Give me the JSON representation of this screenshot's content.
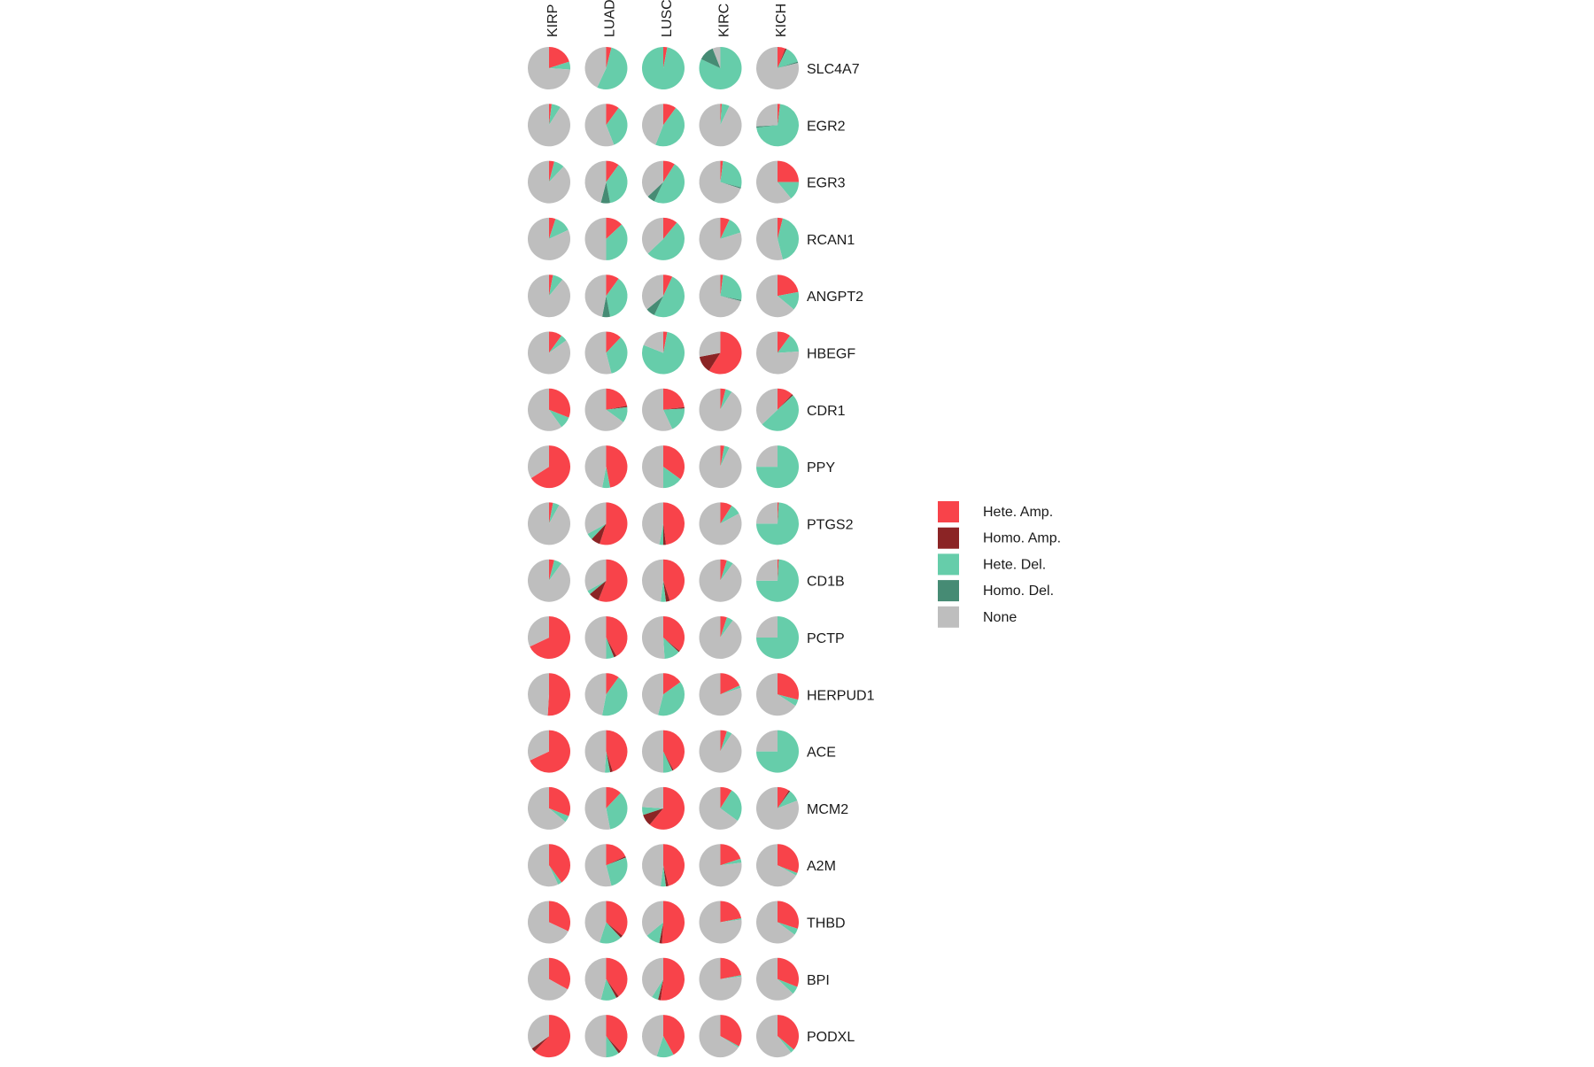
{
  "chart_data": {
    "type": "pie",
    "title": "",
    "columns": [
      "KIRP",
      "LUAD",
      "LUSC",
      "KIRC",
      "KICH"
    ],
    "rows": [
      "SLC4A7",
      "EGR2",
      "EGR3",
      "RCAN1",
      "ANGPT2",
      "HBEGF",
      "CDR1",
      "PPY",
      "PTGS2",
      "CD1B",
      "PCTP",
      "HERPUD1",
      "ACE",
      "MCM2",
      "A2M",
      "THBD",
      "BPI",
      "PODXL"
    ],
    "categories": [
      "Hete. Amp.",
      "Homo. Amp.",
      "Hete. Del.",
      "Homo. Del.",
      "None"
    ],
    "colors": {
      "Hete. Amp.": "#f8434a",
      "Homo. Amp.": "#8b2425",
      "Hete. Del.": "#66cdaa",
      "Homo. Del.": "#468b74",
      "None": "#bebebe"
    },
    "legend_position": "right",
    "values": [
      [
        [
          0.2,
          0,
          0.06,
          0,
          0.74
        ],
        [
          0.04,
          0,
          0.53,
          0,
          0.43
        ],
        [
          0.03,
          0,
          0.97,
          0,
          0
        ],
        [
          0,
          0,
          0.82,
          0.12,
          0.06
        ],
        [
          0.06,
          0.01,
          0.13,
          0.01,
          0.79
        ]
      ],
      [
        [
          0.02,
          0,
          0.07,
          0,
          0.91
        ],
        [
          0.1,
          0,
          0.34,
          0,
          0.56
        ],
        [
          0.1,
          0,
          0.46,
          0,
          0.44
        ],
        [
          0.01,
          0,
          0.06,
          0,
          0.93
        ],
        [
          0.02,
          0,
          0.71,
          0.01,
          0.26
        ]
      ],
      [
        [
          0.04,
          0,
          0.08,
          0,
          0.88
        ],
        [
          0.1,
          0,
          0.37,
          0.07,
          0.46
        ],
        [
          0.09,
          0,
          0.48,
          0.06,
          0.37
        ],
        [
          0.02,
          0,
          0.27,
          0.01,
          0.7
        ],
        [
          0.25,
          0,
          0.14,
          0,
          0.61
        ]
      ],
      [
        [
          0.05,
          0,
          0.13,
          0,
          0.82
        ],
        [
          0.13,
          0,
          0.37,
          0,
          0.5
        ],
        [
          0.11,
          0,
          0.52,
          0,
          0.37
        ],
        [
          0.07,
          0,
          0.13,
          0,
          0.8
        ],
        [
          0.04,
          0,
          0.42,
          0,
          0.54
        ]
      ],
      [
        [
          0.03,
          0,
          0.08,
          0,
          0.89
        ],
        [
          0.1,
          0,
          0.37,
          0.06,
          0.47
        ],
        [
          0.07,
          0,
          0.5,
          0.07,
          0.36
        ],
        [
          0.02,
          0,
          0.26,
          0.01,
          0.71
        ],
        [
          0.22,
          0,
          0.14,
          0,
          0.64
        ]
      ],
      [
        [
          0.1,
          0,
          0.05,
          0,
          0.85
        ],
        [
          0.12,
          0,
          0.34,
          0,
          0.54
        ],
        [
          0.03,
          0,
          0.78,
          0,
          0.19
        ],
        [
          0.59,
          0.13,
          0,
          0,
          0.28
        ],
        [
          0.1,
          0,
          0.14,
          0,
          0.76
        ]
      ],
      [
        [
          0.31,
          0,
          0.09,
          0,
          0.6
        ],
        [
          0.22,
          0.01,
          0.12,
          0,
          0.65
        ],
        [
          0.23,
          0.01,
          0.19,
          0,
          0.57
        ],
        [
          0.04,
          0,
          0.05,
          0,
          0.91
        ],
        [
          0.12,
          0.01,
          0.5,
          0,
          0.37
        ]
      ],
      [
        [
          0.66,
          0,
          0,
          0,
          0.34
        ],
        [
          0.47,
          0,
          0.06,
          0,
          0.47
        ],
        [
          0.35,
          0,
          0.15,
          0,
          0.5
        ],
        [
          0.03,
          0,
          0.04,
          0,
          0.93
        ],
        [
          0,
          0,
          0.75,
          0,
          0.25
        ]
      ],
      [
        [
          0.03,
          0,
          0.05,
          0,
          0.92
        ],
        [
          0.55,
          0.07,
          0.05,
          0,
          0.33
        ],
        [
          0.48,
          0.02,
          0.03,
          0,
          0.47
        ],
        [
          0.09,
          0,
          0.08,
          0,
          0.83
        ],
        [
          0.01,
          0,
          0.74,
          0,
          0.25
        ]
      ],
      [
        [
          0.04,
          0,
          0.06,
          0,
          0.9
        ],
        [
          0.56,
          0.08,
          0.03,
          0,
          0.33
        ],
        [
          0.45,
          0.03,
          0.04,
          0,
          0.48
        ],
        [
          0.05,
          0,
          0.05,
          0,
          0.9
        ],
        [
          0.01,
          0,
          0.74,
          0,
          0.25
        ]
      ],
      [
        [
          0.68,
          0,
          0,
          0,
          0.32
        ],
        [
          0.42,
          0.02,
          0.06,
          0,
          0.5
        ],
        [
          0.36,
          0.01,
          0.12,
          0,
          0.51
        ],
        [
          0.05,
          0,
          0.05,
          0,
          0.9
        ],
        [
          0,
          0,
          0.75,
          0,
          0.25
        ]
      ],
      [
        [
          0.51,
          0,
          0,
          0,
          0.49
        ],
        [
          0.1,
          0,
          0.43,
          0,
          0.47
        ],
        [
          0.15,
          0,
          0.39,
          0,
          0.46
        ],
        [
          0.18,
          0,
          0.02,
          0,
          0.8
        ],
        [
          0.29,
          0,
          0.05,
          0,
          0.66
        ]
      ],
      [
        [
          0.68,
          0,
          0,
          0,
          0.32
        ],
        [
          0.45,
          0.02,
          0.04,
          0,
          0.49
        ],
        [
          0.42,
          0.01,
          0.07,
          0,
          0.5
        ],
        [
          0.05,
          0,
          0.04,
          0,
          0.91
        ],
        [
          0,
          0,
          0.75,
          0,
          0.25
        ]
      ],
      [
        [
          0.31,
          0,
          0.05,
          0,
          0.64
        ],
        [
          0.12,
          0,
          0.35,
          0,
          0.53
        ],
        [
          0.61,
          0.09,
          0.06,
          0,
          0.24
        ],
        [
          0.09,
          0,
          0.26,
          0,
          0.65
        ],
        [
          0.09,
          0.01,
          0.09,
          0,
          0.81
        ]
      ],
      [
        [
          0.4,
          0,
          0.03,
          0,
          0.57
        ],
        [
          0.18,
          0.01,
          0.27,
          0,
          0.54
        ],
        [
          0.46,
          0.02,
          0.04,
          0,
          0.48
        ],
        [
          0.2,
          0,
          0.03,
          0,
          0.77
        ],
        [
          0.31,
          0,
          0.02,
          0,
          0.67
        ]
      ],
      [
        [
          0.32,
          0,
          0,
          0,
          0.68
        ],
        [
          0.36,
          0.02,
          0.17,
          0,
          0.45
        ],
        [
          0.51,
          0.02,
          0.11,
          0,
          0.36
        ],
        [
          0.22,
          0,
          0.01,
          0,
          0.77
        ],
        [
          0.3,
          0,
          0.05,
          0,
          0.65
        ]
      ],
      [
        [
          0.33,
          0,
          0,
          0,
          0.67
        ],
        [
          0.4,
          0.02,
          0.12,
          0,
          0.46
        ],
        [
          0.52,
          0.02,
          0.05,
          0,
          0.41
        ],
        [
          0.22,
          0,
          0.01,
          0,
          0.77
        ],
        [
          0.31,
          0,
          0.06,
          0,
          0.63
        ]
      ],
      [
        [
          0.62,
          0.03,
          0,
          0,
          0.35
        ],
        [
          0.38,
          0.02,
          0.1,
          0,
          0.5
        ],
        [
          0.42,
          0,
          0.13,
          0,
          0.45
        ],
        [
          0.33,
          0,
          0.01,
          0,
          0.66
        ],
        [
          0.36,
          0,
          0.03,
          0,
          0.61
        ]
      ]
    ]
  }
}
